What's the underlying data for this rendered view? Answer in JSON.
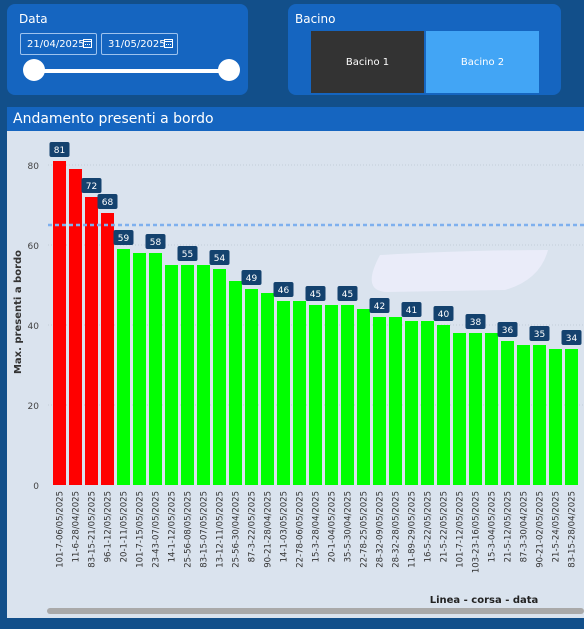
{
  "date_panel": {
    "title": "Data",
    "start_date": "21/04/2025",
    "end_date": "31/05/2025"
  },
  "bacino_panel": {
    "title": "Bacino",
    "options": [
      "Bacino 1",
      "Bacino 2"
    ],
    "selected": "Bacino 1"
  },
  "chart_panel": {
    "header": "Andamento presenti a bordo"
  },
  "colors": {
    "above_threshold": "#ff0000",
    "below_threshold": "#00ff00",
    "threshold_line": "#7eb0ee",
    "label_bg": "#14426e"
  },
  "chart_data": {
    "type": "bar",
    "title": "Andamento presenti a bordo",
    "xlabel": "Linea - corsa - data",
    "ylabel": "Max. presenti a bordo",
    "ylim": [
      0,
      80
    ],
    "yticks": [
      0,
      20,
      40,
      60,
      80
    ],
    "threshold": 65,
    "categories": [
      "101-7-06/05/2025",
      "11-6-28/04/2025",
      "83-15-21/05/2025",
      "96-1-12/05/2025",
      "20-1-11/05/2025",
      "101-7-15/05/2025",
      "23-43-07/05/2025",
      "14-1-12/05/2025",
      "25-56-08/05/2025",
      "83-15-07/05/2025",
      "13-12-11/05/2025",
      "25-56-30/04/2025",
      "87-3-22/05/2025",
      "90-21-28/04/2025",
      "14-1-03/05/2025",
      "22-78-06/05/2025",
      "15-3-28/04/2025",
      "20-1-04/05/2025",
      "35-5-30/04/2025",
      "22-78-25/05/2025",
      "28-32-09/05/2025",
      "28-32-28/05/2025",
      "11-89-29/05/2025",
      "16-5-22/05/2025",
      "21-5-22/05/2025",
      "101-7-12/05/2025",
      "103-23-16/05/2025",
      "15-3-04/05/2025",
      "21-5-12/05/2025",
      "87-3-30/04/2025",
      "90-21-02/05/2025",
      "21-5-24/05/2025",
      "83-15-28/04/2025"
    ],
    "values": [
      81,
      79,
      72,
      68,
      59,
      58,
      58,
      55,
      55,
      55,
      54,
      51,
      49,
      48,
      46,
      46,
      45,
      45,
      45,
      44,
      42,
      42,
      41,
      41,
      40,
      38,
      38,
      38,
      36,
      35,
      35,
      34,
      34
    ],
    "data_labels": [
      81,
      null,
      72,
      68,
      59,
      null,
      58,
      null,
      55,
      null,
      54,
      null,
      49,
      null,
      46,
      null,
      45,
      null,
      45,
      null,
      42,
      null,
      41,
      null,
      40,
      null,
      38,
      null,
      36,
      null,
      35,
      null,
      34
    ],
    "legend": "none",
    "grid": "horizontal dotted"
  }
}
